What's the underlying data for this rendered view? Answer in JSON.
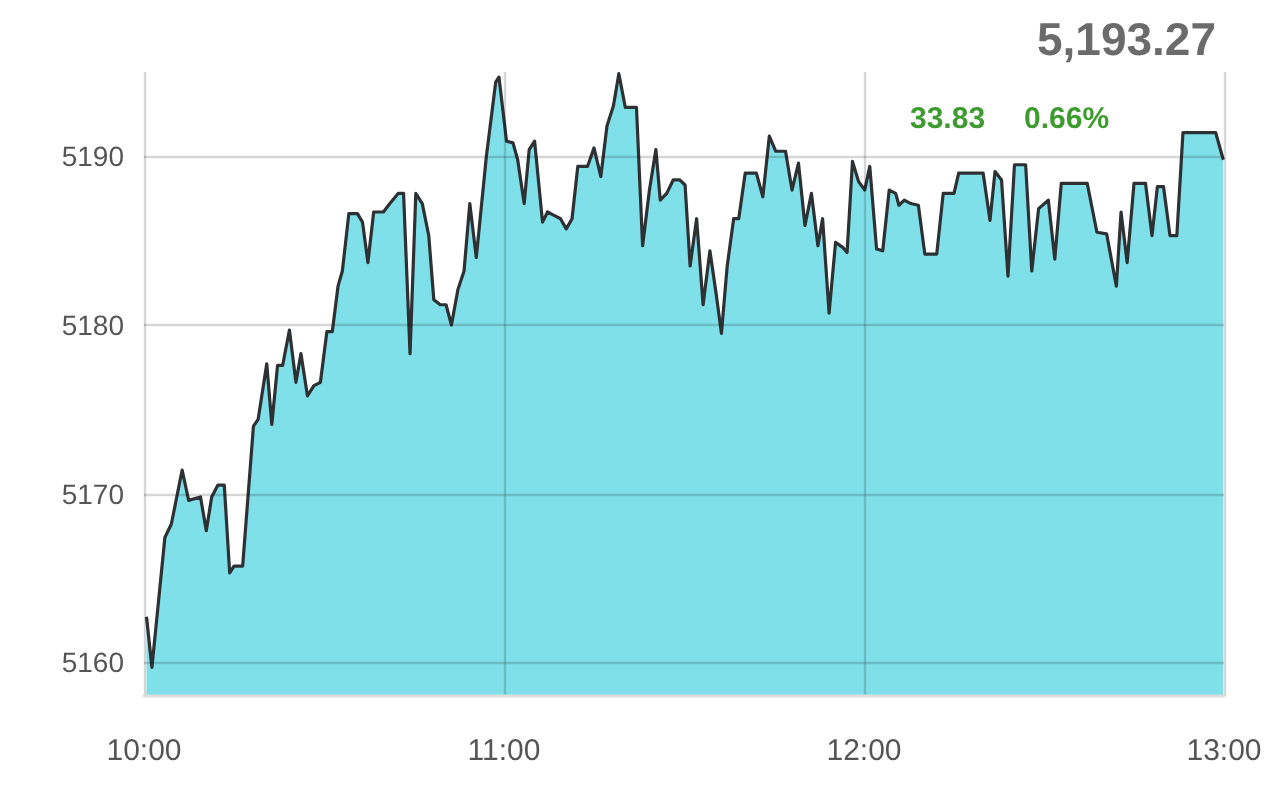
{
  "chart_data": {
    "type": "area",
    "color": "#7fe0ea",
    "marker": "none",
    "grid": true,
    "annotations": [
      "5,193.27",
      "33.83",
      "0.66%"
    ],
    "xlim": [
      10,
      13
    ],
    "xticks": [
      {
        "value": 10,
        "label": "10:00"
      },
      {
        "value": 11,
        "label": "11:00"
      },
      {
        "value": 12,
        "label": "12:00"
      },
      {
        "value": 13,
        "label": "13:00"
      }
    ],
    "ylim": [
      5158,
      5195
    ],
    "yticks": [
      5160,
      5170,
      5180,
      5190
    ],
    "x": [
      10.007,
      10.022,
      10.058,
      10.076,
      10.106,
      10.124,
      10.157,
      10.173,
      10.188,
      10.205,
      10.223,
      10.238,
      10.25,
      10.274,
      10.304,
      10.317,
      10.341,
      10.355,
      10.371,
      10.385,
      10.404,
      10.422,
      10.436,
      10.454,
      10.472,
      10.49,
      10.508,
      10.523,
      10.539,
      10.551,
      10.569,
      10.593,
      10.607,
      10.622,
      10.638,
      10.665,
      10.683,
      10.706,
      10.721,
      10.739,
      10.755,
      10.773,
      10.791,
      10.805,
      10.823,
      10.839,
      10.854,
      10.872,
      10.889,
      10.905,
      10.923,
      10.951,
      10.977,
      10.986,
      11.007,
      11.025,
      11.038,
      11.056,
      11.07,
      11.085,
      11.107,
      11.121,
      11.139,
      11.157,
      11.173,
      11.189,
      11.205,
      11.232,
      11.25,
      11.269,
      11.286,
      11.304,
      11.319,
      11.337,
      11.368,
      11.385,
      11.404,
      11.422,
      11.434,
      11.452,
      11.47,
      11.488,
      11.503,
      11.517,
      11.535,
      11.553,
      11.572,
      11.589,
      11.604,
      11.62,
      11.638,
      11.652,
      11.67,
      11.701,
      11.719,
      11.737,
      11.755,
      11.782,
      11.8,
      11.818,
      11.836,
      11.854,
      11.872,
      11.885,
      11.903,
      11.921,
      11.941,
      11.953,
      11.968,
      11.985,
      12.002,
      12.016,
      12.035,
      12.052,
      12.07,
      12.088,
      12.097,
      12.112,
      12.13,
      12.151,
      12.169,
      12.202,
      12.22,
      12.25,
      12.263,
      12.331,
      12.35,
      12.364,
      12.382,
      12.4,
      12.418,
      12.449,
      12.466,
      12.485,
      12.512,
      12.53,
      12.548,
      12.62,
      12.647,
      12.674,
      12.701,
      12.714,
      12.731,
      12.75,
      12.782,
      12.8,
      12.815,
      12.832,
      12.85,
      12.869,
      12.886,
      12.977,
      12.998
    ],
    "values": [
      5162.7,
      5159.7,
      5167.4,
      5168.2,
      5171.4,
      5169.6,
      5169.8,
      5167.8,
      5169.8,
      5170.5,
      5170.5,
      5165.3,
      5165.7,
      5165.7,
      5174.0,
      5174.4,
      5177.7,
      5174.1,
      5177.6,
      5177.6,
      5179.7,
      5176.6,
      5178.3,
      5175.8,
      5176.4,
      5176.6,
      5179.6,
      5179.6,
      5182.3,
      5183.2,
      5186.6,
      5186.6,
      5186.1,
      5183.7,
      5186.7,
      5186.7,
      5187.2,
      5187.8,
      5187.8,
      5178.3,
      5187.8,
      5187.2,
      5185.3,
      5181.5,
      5181.2,
      5181.2,
      5180.0,
      5182.1,
      5183.2,
      5187.2,
      5184.0,
      5190.0,
      5194.4,
      5194.7,
      5190.9,
      5190.8,
      5189.8,
      5187.2,
      5190.4,
      5190.9,
      5186.1,
      5186.7,
      5186.5,
      5186.3,
      5185.7,
      5186.3,
      5189.4,
      5189.4,
      5190.5,
      5188.8,
      5191.8,
      5193.0,
      5194.9,
      5192.9,
      5192.9,
      5184.7,
      5188.0,
      5190.4,
      5187.4,
      5187.8,
      5188.6,
      5188.6,
      5188.3,
      5183.5,
      5186.3,
      5181.2,
      5184.4,
      5181.9,
      5179.5,
      5183.5,
      5186.3,
      5186.3,
      5189.0,
      5189.0,
      5187.6,
      5191.2,
      5190.3,
      5190.3,
      5188.0,
      5189.6,
      5185.9,
      5187.8,
      5184.7,
      5186.3,
      5180.7,
      5184.9,
      5184.6,
      5184.3,
      5189.7,
      5188.5,
      5188.0,
      5189.4,
      5184.5,
      5184.4,
      5188.0,
      5187.8,
      5187.1,
      5187.4,
      5187.2,
      5187.1,
      5184.2,
      5184.2,
      5187.8,
      5187.8,
      5189.0,
      5189.0,
      5186.2,
      5189.1,
      5188.6,
      5182.9,
      5189.5,
      5189.5,
      5183.2,
      5186.9,
      5187.4,
      5183.9,
      5188.4,
      5188.4,
      5185.5,
      5185.4,
      5182.3,
      5186.7,
      5183.7,
      5188.4,
      5188.4,
      5185.3,
      5188.2,
      5188.2,
      5185.3,
      5185.3,
      5191.4,
      5191.4,
      5189.8
    ]
  }
}
